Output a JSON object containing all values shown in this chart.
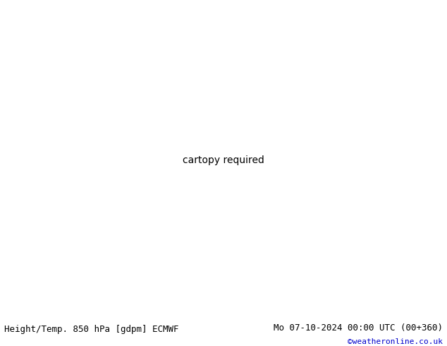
{
  "title_left": "Height/Temp. 850 hPa [gdpm] ECMWF",
  "title_right": "Mo 07-10-2024 00:00 UTC (00+360)",
  "credit": "©weatheronline.co.uk",
  "extent": [
    -100,
    15,
    -70,
    15
  ],
  "lon_min": -100,
  "lon_max": 15,
  "lat_min": -70,
  "lat_max": 15,
  "ocean_color": "#d0d8e0",
  "land_color": "#c8d098",
  "border_color": "#808080",
  "black_contour_color": "#000000",
  "orange_contour_color": "#e08000",
  "red_contour_color": "#cc0000",
  "cyan_contour_color": "#00b8b8",
  "green_contour_color": "#88c800",
  "gray_land_color": "#b0b0b0"
}
